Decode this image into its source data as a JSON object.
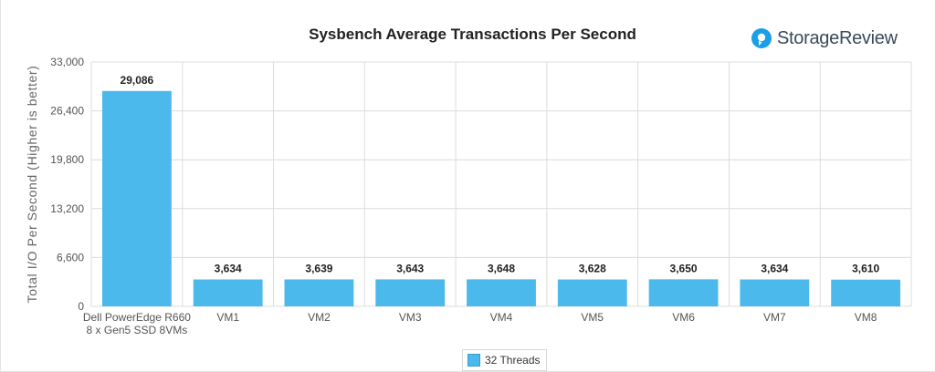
{
  "brand": {
    "name": "StorageReview",
    "icon": "storagereview-logo-icon",
    "color": "#3a4a5a",
    "accent": "#1aa0e6"
  },
  "legend": {
    "label": "32 Threads"
  },
  "chart_data": {
    "type": "bar",
    "title": "Sysbench Average Transactions Per Second",
    "ylabel": "Total I/O Per Second (Higher is better)",
    "xlabel": "",
    "ylim": [
      0,
      33000
    ],
    "yticks": [
      "0",
      "6,600",
      "13,200",
      "19,800",
      "26,400",
      "33,000"
    ],
    "ytick_values": [
      0,
      6600,
      13200,
      19800,
      26400,
      33000
    ],
    "categories": [
      [
        "Dell PowerEdge R660",
        "8 x Gen5 SSD 8VMs"
      ],
      [
        "VM1"
      ],
      [
        "VM2"
      ],
      [
        "VM3"
      ],
      [
        "VM4"
      ],
      [
        "VM5"
      ],
      [
        "VM6"
      ],
      [
        "VM7"
      ],
      [
        "VM8"
      ]
    ],
    "series": [
      {
        "name": "32 Threads",
        "color": "#4cb9ec",
        "values": [
          29086,
          3634,
          3639,
          3643,
          3648,
          3628,
          3650,
          3634,
          3610
        ],
        "labels": [
          "29,086",
          "3,634",
          "3,639",
          "3,643",
          "3,648",
          "3,628",
          "3,650",
          "3,634",
          "3,610"
        ]
      }
    ],
    "grid": true,
    "legend_position": "bottom-center"
  }
}
